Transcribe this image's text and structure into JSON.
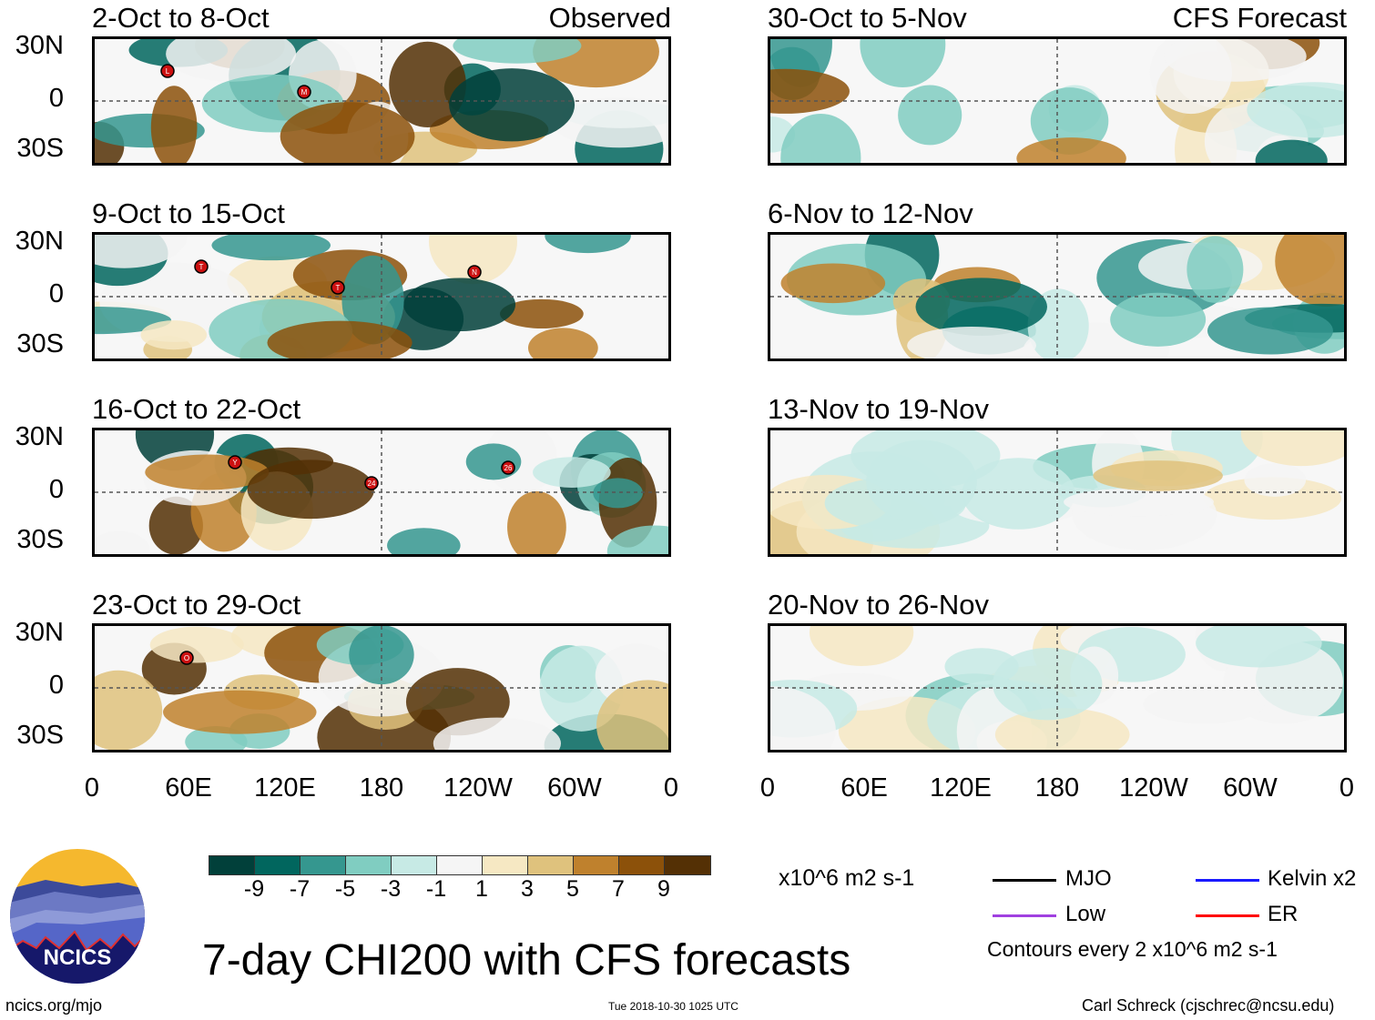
{
  "chart_data": [
    {
      "type": "heatmap",
      "title": "2-Oct to 8-Oct",
      "subtitle": "Observed",
      "column": "Observed",
      "storms": [
        "L",
        "M"
      ],
      "ylabels": [
        "30N",
        "0",
        "30S"
      ],
      "xlabels": [
        "0",
        "60E",
        "120E",
        "180",
        "120W",
        "60W",
        "0"
      ]
    },
    {
      "type": "heatmap",
      "title": "9-Oct to 15-Oct",
      "subtitle": "",
      "column": "Observed",
      "storms": [
        "T",
        "T",
        "N"
      ],
      "ylabels": [
        "30N",
        "0",
        "30S"
      ],
      "xlabels": [
        "0",
        "60E",
        "120E",
        "180",
        "120W",
        "60W",
        "0"
      ]
    },
    {
      "type": "heatmap",
      "title": "16-Oct to 22-Oct",
      "subtitle": "",
      "column": "Observed",
      "storms": [
        "Y",
        "24",
        "26"
      ],
      "ylabels": [
        "30N",
        "0",
        "30S"
      ],
      "xlabels": [
        "0",
        "60E",
        "120E",
        "180",
        "120W",
        "60W",
        "0"
      ]
    },
    {
      "type": "heatmap",
      "title": "23-Oct to 29-Oct",
      "subtitle": "",
      "column": "Observed",
      "storms": [
        "O"
      ],
      "ylabels": [
        "30N",
        "0",
        "30S"
      ],
      "xlabels": [
        "0",
        "60E",
        "120E",
        "180",
        "120W",
        "60W",
        "0"
      ]
    },
    {
      "type": "heatmap",
      "title": "30-Oct to 5-Nov",
      "subtitle": "CFS Forecast",
      "column": "CFS Forecast",
      "storms": [],
      "xlabels": [
        "0",
        "60E",
        "120E",
        "180",
        "120W",
        "60W",
        "0"
      ]
    },
    {
      "type": "heatmap",
      "title": "6-Nov to 12-Nov",
      "subtitle": "",
      "column": "CFS Forecast",
      "storms": [],
      "xlabels": [
        "0",
        "60E",
        "120E",
        "180",
        "120W",
        "60W",
        "0"
      ]
    },
    {
      "type": "heatmap",
      "title": "13-Nov to 19-Nov",
      "subtitle": "",
      "column": "CFS Forecast",
      "storms": [],
      "xlabels": [
        "0",
        "60E",
        "120E",
        "180",
        "120W",
        "60W",
        "0"
      ]
    },
    {
      "type": "heatmap",
      "title": "20-Nov to 26-Nov",
      "subtitle": "",
      "column": "CFS Forecast",
      "storms": [],
      "xlabels": [
        "0",
        "60E",
        "120E",
        "180",
        "120W",
        "60W",
        "0"
      ]
    }
  ],
  "colorbar": {
    "levels": [
      "-9",
      "-7",
      "-5",
      "-3",
      "-1",
      "1",
      "3",
      "5",
      "7",
      "9"
    ],
    "colors": [
      "#01403a",
      "#01665e",
      "#35978f",
      "#80cdc1",
      "#c7eae5",
      "#f5f5f5",
      "#f6e8c3",
      "#dfc27d",
      "#bf812d",
      "#8c510a",
      "#543005"
    ],
    "units": "x10^6 m2 s-1"
  },
  "legend": {
    "items": [
      {
        "label": "MJO",
        "color": "#000000"
      },
      {
        "label": "Kelvin x2",
        "color": "#1a1aff"
      },
      {
        "label": "Low",
        "color": "#a040e0"
      },
      {
        "label": "ER",
        "color": "#ff0000"
      }
    ],
    "note": "Contours every 2 x10^6 m2 s-1"
  },
  "title": "7-day CHI200 with CFS forecasts",
  "logo_text": "NCICS",
  "site": "ncics.org/mjo",
  "timestamp": "Tue 2018-10-30 1025 UTC",
  "credit": "Carl Schreck (cjschrec@ncsu.edu)"
}
